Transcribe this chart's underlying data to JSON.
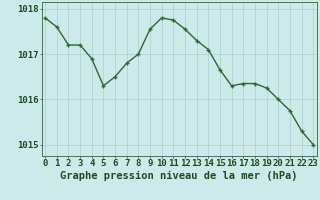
{
  "x": [
    0,
    1,
    2,
    3,
    4,
    5,
    6,
    7,
    8,
    9,
    10,
    11,
    12,
    13,
    14,
    15,
    16,
    17,
    18,
    19,
    20,
    21,
    22,
    23
  ],
  "y": [
    1017.8,
    1017.6,
    1017.2,
    1017.2,
    1016.9,
    1016.3,
    1016.5,
    1016.8,
    1017.0,
    1017.55,
    1017.8,
    1017.75,
    1017.55,
    1017.3,
    1017.1,
    1016.65,
    1016.3,
    1016.35,
    1016.35,
    1016.25,
    1016.0,
    1015.75,
    1015.3,
    1015.0
  ],
  "line_color": "#2d6a2d",
  "marker": "+",
  "bg_color": "#cceaea",
  "grid_color": "#b0cccc",
  "xlabel": "Graphe pression niveau de la mer (hPa)",
  "xlabel_fontsize": 7.5,
  "tick_fontsize": 6.5,
  "ylim": [
    1014.75,
    1018.15
  ],
  "yticks": [
    1015,
    1016,
    1017,
    1018
  ],
  "xticks": [
    0,
    1,
    2,
    3,
    4,
    5,
    6,
    7,
    8,
    9,
    10,
    11,
    12,
    13,
    14,
    15,
    16,
    17,
    18,
    19,
    20,
    21,
    22,
    23
  ],
  "line_width": 1.0,
  "marker_size": 3.5,
  "title_color": "#1a4d1a"
}
